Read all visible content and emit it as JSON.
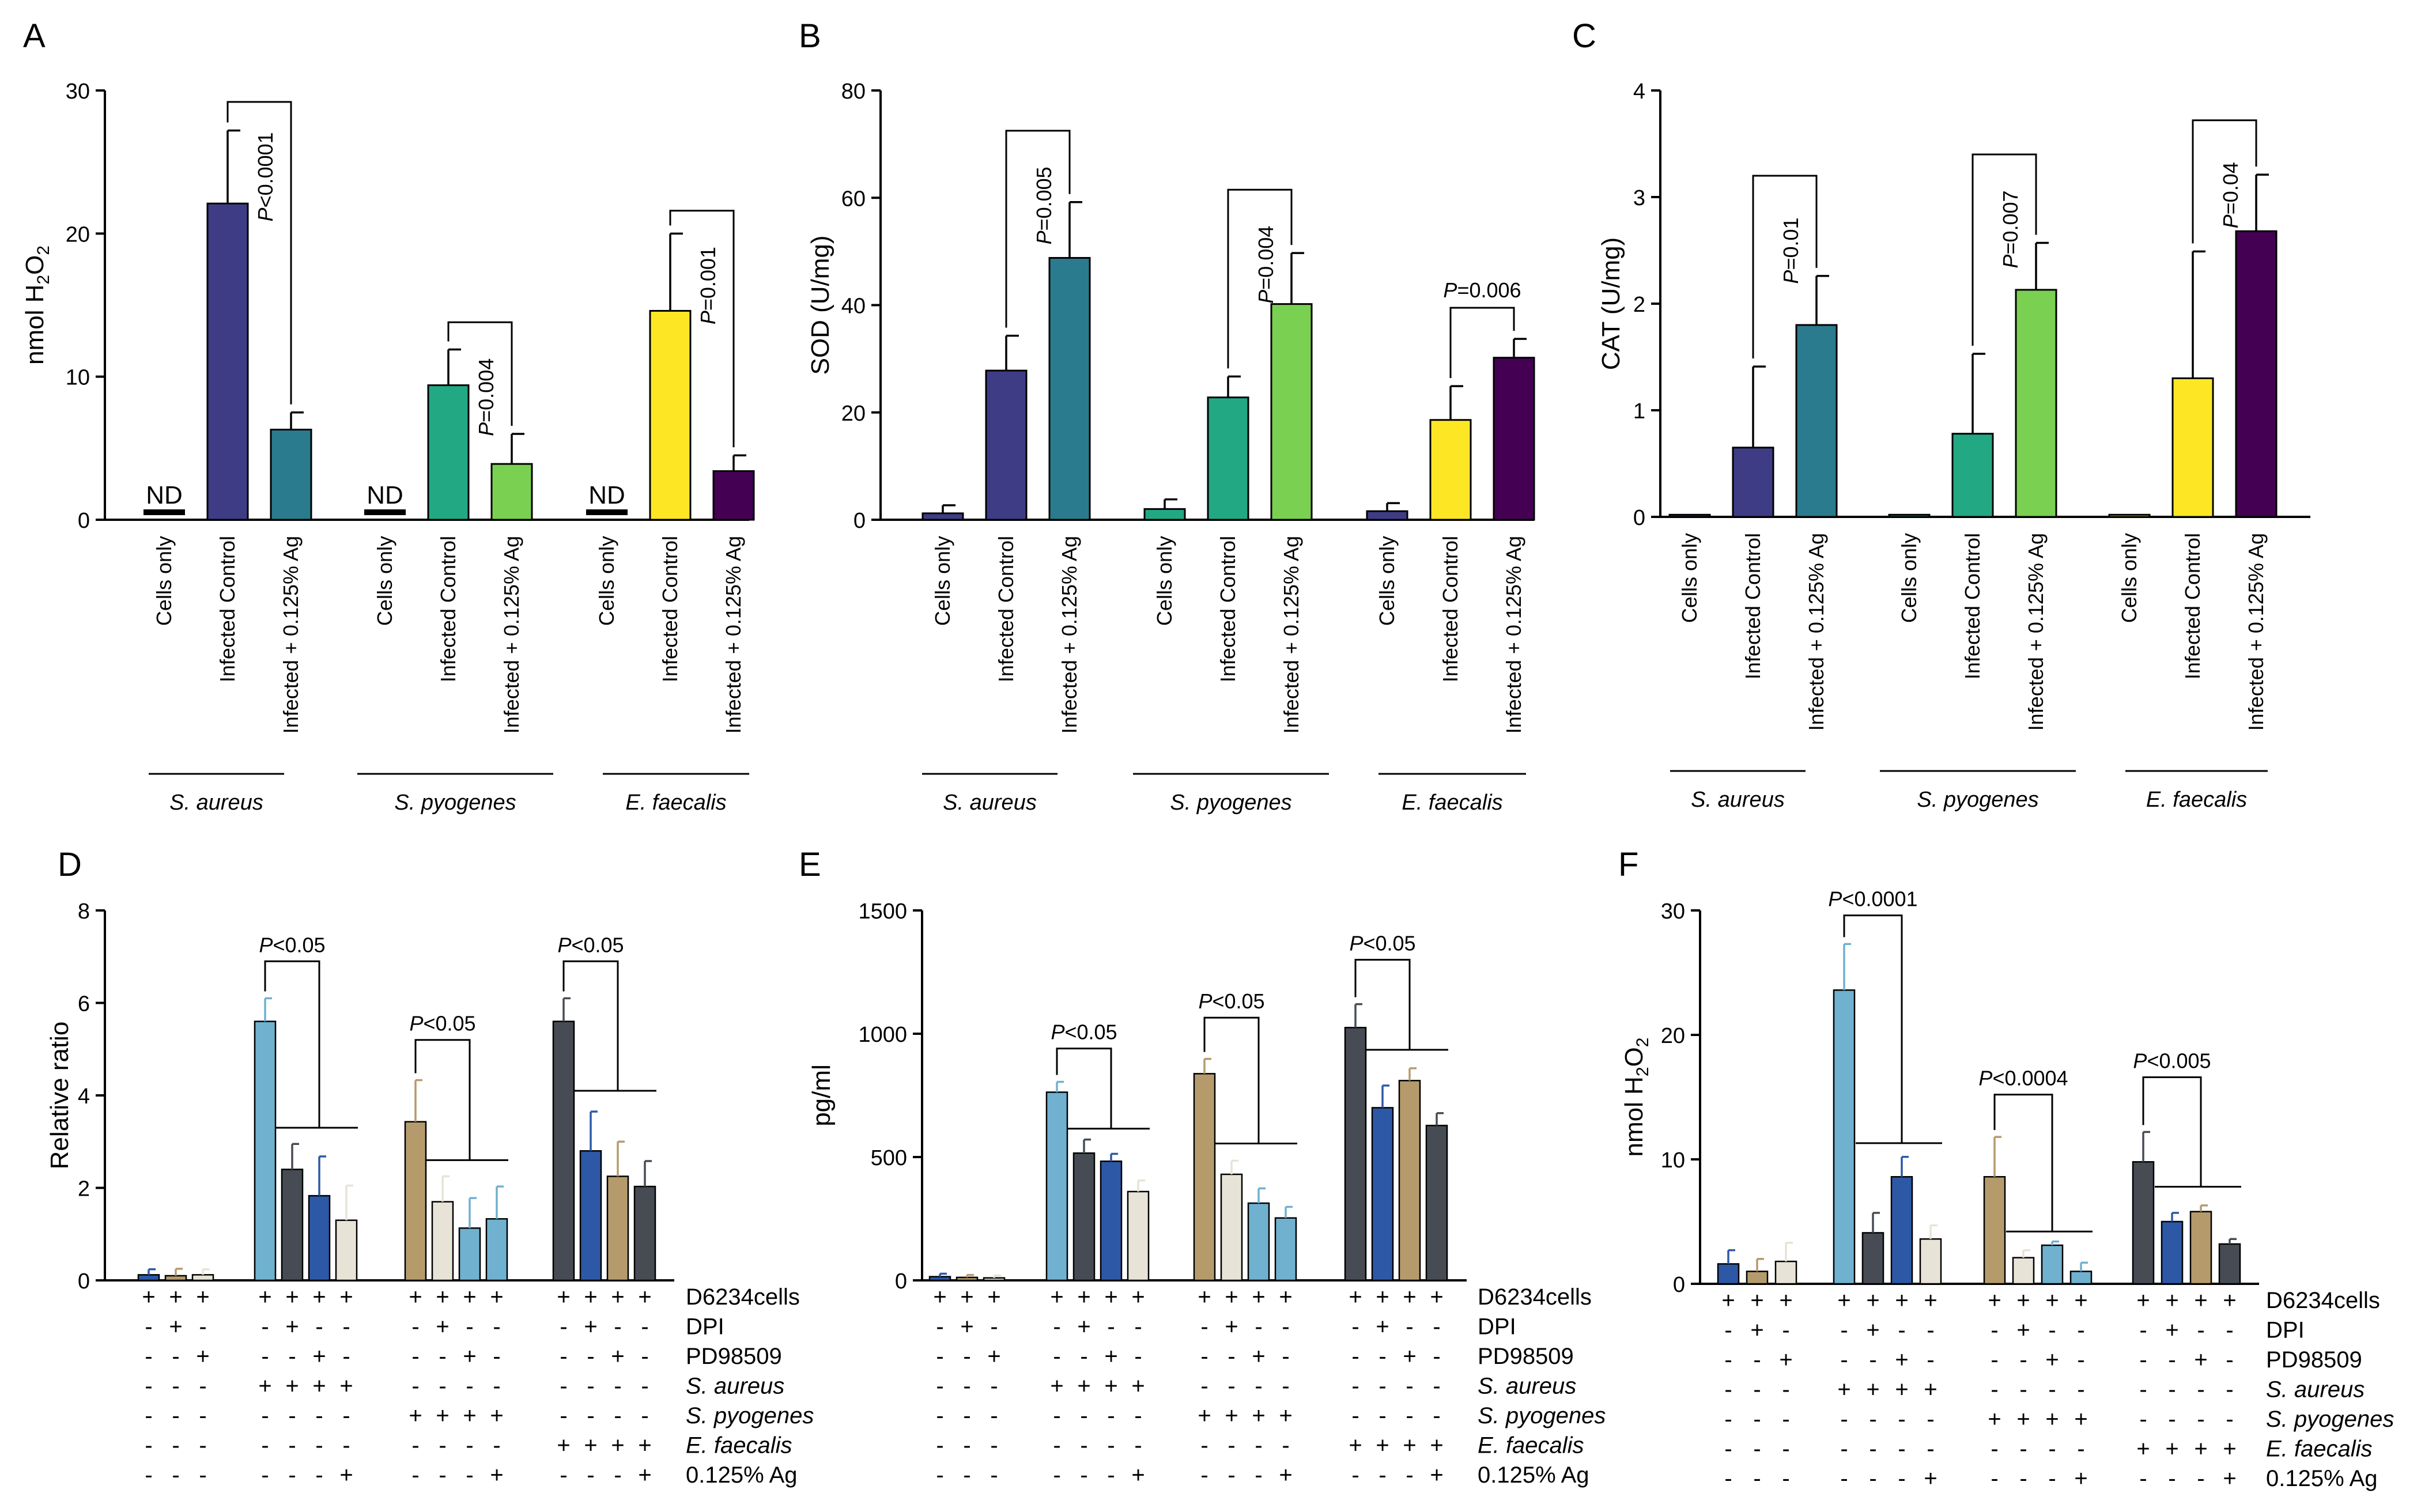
{
  "figure": {
    "title": ""
  },
  "colors": {
    "navy": "#3f3c86",
    "teal": "#2a7b8e",
    "green": "#23a884",
    "lime": "#7ad151",
    "yellow": "#fde725",
    "purple": "#440154",
    "lightblue": "#6fb1cf",
    "darkgray": "#474c54",
    "blue": "#2d58a6",
    "tan": "#b59b6c",
    "cream": "#e7e3d6",
    "axis": "#000000"
  },
  "chart_data": [
    {
      "panel": "A",
      "type": "bar",
      "ylabel": "nmol H₂O₂",
      "ylabel_main": "nmol H",
      "ylabel_sub1": "2",
      "ylabel_mid": "O",
      "ylabel_sub2": "2",
      "ylim": [
        0,
        30
      ],
      "yticks": [
        "0",
        "10",
        "20",
        "30"
      ],
      "ytick_values": [
        0,
        10,
        20,
        30
      ],
      "categories": [
        "Cells only",
        "Infected Control",
        "Infected + 0.125% Ag"
      ],
      "groups": [
        {
          "name": "S. aureus",
          "values": [
            0,
            22.1,
            6.3
          ],
          "errors": [
            0,
            5.1,
            1.2
          ],
          "colors": [
            "navy",
            "navy",
            "teal"
          ],
          "nd": true,
          "pvalue": "P<0.0001",
          "pvalue_italic": "P",
          "pvalue_rest": "<0.0001",
          "bracket": [
            1,
            2
          ],
          "bracket_y": 29.2
        },
        {
          "name": "S. pyogenes",
          "values": [
            0,
            9.4,
            3.9
          ],
          "errors": [
            0,
            2.5,
            2.1
          ],
          "colors": [
            "green",
            "green",
            "lime"
          ],
          "nd": true,
          "pvalue": "P=0.004",
          "pvalue_italic": "P",
          "pvalue_rest": "=0.004",
          "bracket": [
            1,
            2
          ],
          "bracket_y": 13.8
        },
        {
          "name": "E. faecalis",
          "values": [
            0,
            14.6,
            3.4
          ],
          "errors": [
            0,
            5.4,
            1.1
          ],
          "colors": [
            "yellow",
            "yellow",
            "purple"
          ],
          "nd": true,
          "pvalue": "P=0.001",
          "pvalue_italic": "P",
          "pvalue_rest": "=0.001",
          "bracket": [
            1,
            2
          ],
          "bracket_y": 21.6
        }
      ]
    },
    {
      "panel": "B",
      "type": "bar",
      "ylabel": "SOD (U/mg)",
      "ylim": [
        0,
        80
      ],
      "yticks": [
        "0",
        "20",
        "40",
        "60",
        "80"
      ],
      "ytick_values": [
        0,
        20,
        40,
        60,
        80
      ],
      "categories": [
        "Cells only",
        "Infected Control",
        "Infected + 0.125% Ag"
      ],
      "groups": [
        {
          "name": "S. aureus",
          "values": [
            1.2,
            27.8,
            48.8
          ],
          "errors": [
            1.5,
            6.5,
            10.4
          ],
          "colors": [
            "navy",
            "navy",
            "teal"
          ],
          "nd": false,
          "pvalue": "P=0.005",
          "pvalue_italic": "P",
          "pvalue_rest": "=0.005",
          "bracket": [
            1,
            2
          ],
          "bracket_y": 72.5
        },
        {
          "name": "S. pyogenes",
          "values": [
            2.0,
            22.8,
            40.2
          ],
          "errors": [
            1.8,
            3.9,
            9.5
          ],
          "colors": [
            "green",
            "green",
            "lime"
          ],
          "nd": false,
          "pvalue": "P=0.004",
          "pvalue_italic": "P",
          "pvalue_rest": "=0.004",
          "bracket": [
            1,
            2
          ],
          "bracket_y": 61.5
        },
        {
          "name": "E. faecalis",
          "values": [
            1.6,
            18.6,
            30.2
          ],
          "errors": [
            1.5,
            6.3,
            3.5
          ],
          "colors": [
            "navy",
            "yellow",
            "purple"
          ],
          "nd": false,
          "pvalue": "P=0.006",
          "pvalue_italic": "P",
          "pvalue_rest": "=0.006",
          "bracket": [
            1,
            2
          ],
          "bracket_y": 39.5,
          "pvalue_horizontal": true
        }
      ]
    },
    {
      "panel": "C",
      "type": "bar",
      "ylabel": "CAT (U/mg)",
      "ylim": [
        0,
        4
      ],
      "yticks": [
        "0",
        "1",
        "2",
        "3",
        "4"
      ],
      "ytick_values": [
        0,
        1,
        2,
        3,
        4
      ],
      "categories": [
        "Cells only",
        "Infected Control",
        "Infected + 0.125% Ag"
      ],
      "groups": [
        {
          "name": "S. aureus",
          "values": [
            0.02,
            0.65,
            1.8
          ],
          "errors": [
            0,
            0.76,
            0.46
          ],
          "colors": [
            "navy",
            "navy",
            "teal"
          ],
          "nd": false,
          "pvalue": "P=0.01",
          "pvalue_italic": "P",
          "pvalue_rest": "=0.01",
          "bracket": [
            1,
            2
          ],
          "bracket_y": 3.2
        },
        {
          "name": "S. pyogenes",
          "values": [
            0.02,
            0.78,
            2.13
          ],
          "errors": [
            0,
            0.75,
            0.44
          ],
          "colors": [
            "green",
            "green",
            "lime"
          ],
          "nd": false,
          "pvalue": "P=0.007",
          "pvalue_italic": "P",
          "pvalue_rest": "=0.007",
          "bracket": [
            1,
            2
          ],
          "bracket_y": 3.4
        },
        {
          "name": "E. faecalis",
          "values": [
            0.02,
            1.3,
            2.68
          ],
          "errors": [
            0,
            1.19,
            0.53
          ],
          "colors": [
            "yellow",
            "yellow",
            "purple"
          ],
          "nd": false,
          "pvalue": "P=0.04",
          "pvalue_italic": "P",
          "pvalue_rest": "=0.04",
          "bracket": [
            1,
            2
          ],
          "bracket_y": 3.72
        }
      ]
    },
    {
      "panel": "D",
      "type": "bar",
      "ylabel": "Relative ratio",
      "ylim": [
        0,
        8
      ],
      "yticks": [
        "0",
        "2",
        "4",
        "6",
        "8"
      ],
      "ytick_values": [
        0,
        2,
        4,
        6,
        8
      ],
      "groups": [
        {
          "values": [
            0.12,
            0.1,
            0.12
          ],
          "errors": [
            0.12,
            0.15,
            0.12
          ],
          "colors": [
            "blue",
            "tan",
            "cream"
          ]
        },
        {
          "values": [
            5.6,
            2.4,
            1.83,
            1.3
          ],
          "errors": [
            0.5,
            0.55,
            0.85,
            0.75
          ],
          "colors": [
            "lightblue",
            "darkgray",
            "blue",
            "cream"
          ],
          "pvalue": "P<0.05",
          "pvalue_italic": "P",
          "pvalue_rest": "<0.05",
          "top_y": 6.9,
          "bar_y": 3.3
        },
        {
          "values": [
            3.43,
            1.7,
            1.13,
            1.33
          ],
          "errors": [
            0.9,
            0.55,
            0.65,
            0.7
          ],
          "colors": [
            "tan",
            "cream",
            "lightblue",
            "lightblue"
          ],
          "pvalue": "P<0.05",
          "pvalue_italic": "P",
          "pvalue_rest": "<0.05",
          "top_y": 5.2,
          "bar_y": 2.6
        },
        {
          "values": [
            5.6,
            2.8,
            2.25,
            2.03
          ],
          "errors": [
            0.5,
            0.85,
            0.75,
            0.55
          ],
          "colors": [
            "darkgray",
            "blue",
            "tan",
            "darkgray"
          ],
          "pvalue": "P<0.05",
          "pvalue_italic": "P",
          "pvalue_rest": "<0.05",
          "top_y": 6.9,
          "bar_y": 4.1
        }
      ]
    },
    {
      "panel": "E",
      "type": "bar",
      "ylabel": "pg/ml",
      "ylim": [
        0,
        1500
      ],
      "yticks": [
        "0",
        "500",
        "1000",
        "1500"
      ],
      "ytick_values": [
        0,
        500,
        1000,
        1500
      ],
      "groups": [
        {
          "values": [
            15,
            12,
            10
          ],
          "errors": [
            12,
            10,
            10
          ],
          "colors": [
            "blue",
            "tan",
            "cream"
          ]
        },
        {
          "values": [
            763,
            516,
            483,
            360
          ],
          "errors": [
            42,
            55,
            30,
            45
          ],
          "colors": [
            "lightblue",
            "darkgray",
            "blue",
            "cream"
          ],
          "pvalue": "P<0.05",
          "pvalue_italic": "P",
          "pvalue_rest": "<0.05",
          "top_y": 940,
          "bar_y": 615
        },
        {
          "values": [
            838,
            430,
            313,
            253
          ],
          "errors": [
            60,
            55,
            60,
            45
          ],
          "colors": [
            "tan",
            "cream",
            "lightblue",
            "lightblue"
          ],
          "pvalue": "P<0.05",
          "pvalue_italic": "P",
          "pvalue_rest": "<0.05",
          "top_y": 1065,
          "bar_y": 555
        },
        {
          "values": [
            1025,
            700,
            810,
            628
          ],
          "errors": [
            95,
            90,
            50,
            50
          ],
          "colors": [
            "darkgray",
            "blue",
            "tan",
            "darkgray"
          ],
          "pvalue": "P<0.05",
          "pvalue_italic": "P",
          "pvalue_rest": "<0.05",
          "top_y": 1300,
          "bar_y": 935
        }
      ]
    },
    {
      "panel": "F",
      "type": "bar",
      "ylabel": "nmol H₂O₂",
      "ylabel_main": "nmol H",
      "ylabel_sub1": "2",
      "ylabel_mid": "O",
      "ylabel_sub2": "2",
      "ylim": [
        0,
        30
      ],
      "yticks": [
        "0",
        "10",
        "20",
        "30"
      ],
      "ytick_values": [
        0,
        10,
        20,
        30
      ],
      "groups": [
        {
          "values": [
            1.6,
            1.0,
            1.8
          ],
          "errors": [
            1.1,
            1.0,
            1.5
          ],
          "colors": [
            "blue",
            "tan",
            "cream"
          ]
        },
        {
          "values": [
            23.6,
            4.1,
            8.6,
            3.6
          ],
          "errors": [
            3.7,
            1.6,
            1.6,
            1.1
          ],
          "colors": [
            "lightblue",
            "darkgray",
            "blue",
            "cream"
          ],
          "pvalue": "P<0.0001",
          "pvalue_italic": "P",
          "pvalue_rest": "<0.0001",
          "top_y": 29.6,
          "bar_y": 11.3
        },
        {
          "values": [
            8.6,
            2.1,
            3.1,
            1.0
          ],
          "errors": [
            3.2,
            0.6,
            0.3,
            0.7
          ],
          "colors": [
            "tan",
            "cream",
            "lightblue",
            "lightblue"
          ],
          "pvalue": "P<0.0004",
          "pvalue_italic": "P",
          "pvalue_rest": "<0.0004",
          "top_y": 15.2,
          "bar_y": 4.2
        },
        {
          "values": [
            9.8,
            5.0,
            5.8,
            3.2
          ],
          "errors": [
            2.4,
            0.7,
            0.5,
            0.4
          ],
          "colors": [
            "darkgray",
            "blue",
            "tan",
            "darkgray"
          ],
          "pvalue": "P<0.005",
          "pvalue_italic": "P",
          "pvalue_rest": "<0.005",
          "top_y": 16.6,
          "bar_y": 7.8
        }
      ]
    }
  ],
  "treatment_table": {
    "rows": [
      {
        "label": "D6234cells",
        "italic": false,
        "signs": [
          [
            "+",
            "+",
            "+"
          ],
          [
            "+",
            "+",
            "+",
            "+"
          ],
          [
            "+",
            "+",
            "+",
            "+"
          ],
          [
            "+",
            "+",
            "+",
            "+"
          ]
        ]
      },
      {
        "label": "DPI",
        "italic": false,
        "signs": [
          [
            "-",
            "+",
            "-"
          ],
          [
            "-",
            "+",
            "-",
            "-"
          ],
          [
            "-",
            "+",
            "-",
            "-"
          ],
          [
            "-",
            "+",
            "-",
            "-"
          ]
        ]
      },
      {
        "label": "PD98509",
        "italic": false,
        "signs": [
          [
            "-",
            "-",
            "+"
          ],
          [
            "-",
            "-",
            "+",
            "-"
          ],
          [
            "-",
            "-",
            "+",
            "-"
          ],
          [
            "-",
            "-",
            "+",
            "-"
          ]
        ]
      },
      {
        "label": "S. aureus",
        "italic": true,
        "signs": [
          [
            "-",
            "-",
            "-"
          ],
          [
            "+",
            "+",
            "+",
            "+"
          ],
          [
            "-",
            "-",
            "-",
            "-"
          ],
          [
            "-",
            "-",
            "-",
            "-"
          ]
        ]
      },
      {
        "label": "S. pyogenes",
        "italic": true,
        "signs": [
          [
            "-",
            "-",
            "-"
          ],
          [
            "-",
            "-",
            "-",
            "-"
          ],
          [
            "+",
            "+",
            "+",
            "+"
          ],
          [
            "-",
            "-",
            "-",
            "-"
          ]
        ]
      },
      {
        "label": "E. faecalis",
        "italic": true,
        "signs": [
          [
            "-",
            "-",
            "-"
          ],
          [
            "-",
            "-",
            "-",
            "-"
          ],
          [
            "-",
            "-",
            "-",
            "-"
          ],
          [
            "+",
            "+",
            "+",
            "+"
          ]
        ]
      },
      {
        "label": "0.125% Ag",
        "italic": false,
        "signs": [
          [
            "-",
            "-",
            "-"
          ],
          [
            "-",
            "-",
            "-",
            "+"
          ],
          [
            "-",
            "-",
            "-",
            "+"
          ],
          [
            "-",
            "-",
            "-",
            "+"
          ]
        ]
      }
    ]
  }
}
